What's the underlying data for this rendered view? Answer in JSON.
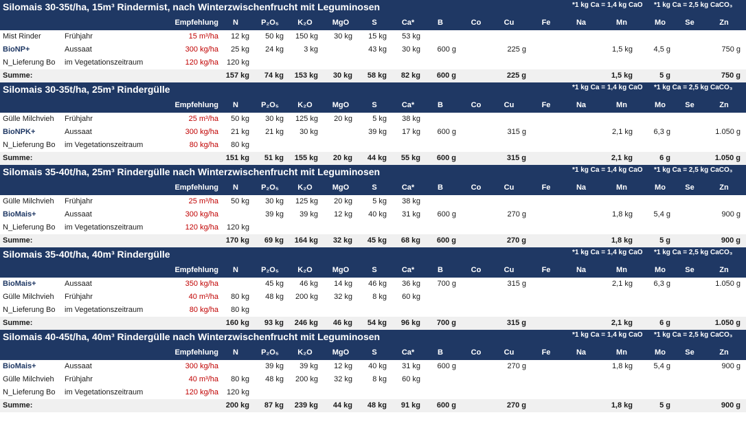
{
  "notes": {
    "cao": "*1 kg Ca = 1,4 kg CaO",
    "caco3": "*1 kg Ca = 2,5 kg CaCO₃"
  },
  "headers": [
    "Empfehlung",
    "N",
    "P₂O₅",
    "K₂O",
    "MgO",
    "S",
    "Ca*",
    "B",
    "Co",
    "Cu",
    "Fe",
    "Na",
    "Mn",
    "Mo",
    "Se",
    "Zn"
  ],
  "sections": [
    {
      "title": "Silomais 30-35t/ha, 15m³ Rindermist, nach Winterzwischenfrucht mit Leguminosen",
      "rows": [
        {
          "name": "Mist Rinder",
          "bold": false,
          "timing": "Frühjahr",
          "amount": "15 m³/ha",
          "N": "12 kg",
          "P": "50 kg",
          "K": "150 kg",
          "Mg": "30 kg",
          "S": "15 kg",
          "Ca": "53 kg",
          "B": "",
          "Cu": "",
          "Mn": "",
          "Mo": "",
          "Zn": ""
        },
        {
          "name": "BioNP+",
          "bold": true,
          "timing": "Aussaat",
          "amount": "300 kg/ha",
          "N": "25 kg",
          "P": "24 kg",
          "K": "3 kg",
          "Mg": "",
          "S": "43 kg",
          "Ca": "30 kg",
          "B": "600 g",
          "Cu": "225 g",
          "Mn": "1,5 kg",
          "Mo": "4,5 g",
          "Zn": "750 g"
        },
        {
          "name": "N_Lieferung Bo",
          "bold": false,
          "timing": "im Vegetationszeitraum",
          "amount": "120 kg/ha",
          "N": "120 kg",
          "P": "",
          "K": "",
          "Mg": "",
          "S": "",
          "Ca": "",
          "B": "",
          "Cu": "",
          "Mn": "",
          "Mo": "",
          "Zn": ""
        }
      ],
      "sum": {
        "label": "Summe:",
        "N": "157 kg",
        "P": "74 kg",
        "K": "153 kg",
        "Mg": "30 kg",
        "S": "58 kg",
        "Ca": "82 kg",
        "B": "600 g",
        "Cu": "225 g",
        "Mn": "1,5 kg",
        "Mo": "5 g",
        "Zn": "750 g"
      }
    },
    {
      "title": "Silomais 30-35t/ha, 25m³ Rindergülle",
      "rows": [
        {
          "name": "Gülle Milchvieh",
          "bold": false,
          "timing": "Frühjahr",
          "amount": "25 m³/ha",
          "N": "50 kg",
          "P": "30 kg",
          "K": "125 kg",
          "Mg": "20 kg",
          "S": "5 kg",
          "Ca": "38 kg",
          "B": "",
          "Cu": "",
          "Mn": "",
          "Mo": "",
          "Zn": ""
        },
        {
          "name": "BioNPK+",
          "bold": true,
          "timing": "Aussaat",
          "amount": "300 kg/ha",
          "N": "21 kg",
          "P": "21 kg",
          "K": "30 kg",
          "Mg": "",
          "S": "39 kg",
          "Ca": "17 kg",
          "B": "600 g",
          "Cu": "315 g",
          "Mn": "2,1 kg",
          "Mo": "6,3 g",
          "Zn": "1.050 g"
        },
        {
          "name": "N_Lieferung Bo",
          "bold": false,
          "timing": "im Vegetationszeitraum",
          "amount": "80 kg/ha",
          "N": "80 kg",
          "P": "",
          "K": "",
          "Mg": "",
          "S": "",
          "Ca": "",
          "B": "",
          "Cu": "",
          "Mn": "",
          "Mo": "",
          "Zn": ""
        }
      ],
      "sum": {
        "label": "Summe:",
        "N": "151 kg",
        "P": "51 kg",
        "K": "155 kg",
        "Mg": "20 kg",
        "S": "44 kg",
        "Ca": "55 kg",
        "B": "600 g",
        "Cu": "315 g",
        "Mn": "2,1 kg",
        "Mo": "6 g",
        "Zn": "1.050 g"
      }
    },
    {
      "title": "Silomais 35-40t/ha, 25m³ Rindergülle nach Winterzwischenfrucht mit Leguminosen",
      "rows": [
        {
          "name": "Gülle Milchvieh",
          "bold": false,
          "timing": "Frühjahr",
          "amount": "25 m³/ha",
          "N": "50 kg",
          "P": "30 kg",
          "K": "125 kg",
          "Mg": "20 kg",
          "S": "5 kg",
          "Ca": "38 kg",
          "B": "",
          "Cu": "",
          "Mn": "",
          "Mo": "",
          "Zn": ""
        },
        {
          "name": "BioMais+",
          "bold": true,
          "timing": "Aussaat",
          "amount": "300 kg/ha",
          "N": "",
          "P": "39 kg",
          "K": "39 kg",
          "Mg": "12 kg",
          "S": "40 kg",
          "Ca": "31 kg",
          "B": "600 g",
          "Cu": "270 g",
          "Mn": "1,8 kg",
          "Mo": "5,4 g",
          "Zn": "900 g"
        },
        {
          "name": "N_Lieferung Bo",
          "bold": false,
          "timing": "im Vegetationszeitraum",
          "amount": "120 kg/ha",
          "N": "120 kg",
          "P": "",
          "K": "",
          "Mg": "",
          "S": "",
          "Ca": "",
          "B": "",
          "Cu": "",
          "Mn": "",
          "Mo": "",
          "Zn": ""
        }
      ],
      "sum": {
        "label": "Summe:",
        "N": "170 kg",
        "P": "69 kg",
        "K": "164 kg",
        "Mg": "32 kg",
        "S": "45 kg",
        "Ca": "68 kg",
        "B": "600 g",
        "Cu": "270 g",
        "Mn": "1,8 kg",
        "Mo": "5 g",
        "Zn": "900 g"
      }
    },
    {
      "title": "Silomais 35-40t/ha, 40m³ Rindergülle",
      "rows": [
        {
          "name": "BioMais+",
          "bold": true,
          "timing": "Aussaat",
          "amount": "350 kg/ha",
          "N": "",
          "P": "45 kg",
          "K": "46 kg",
          "Mg": "14 kg",
          "S": "46 kg",
          "Ca": "36 kg",
          "B": "700 g",
          "Cu": "315 g",
          "Mn": "2,1 kg",
          "Mo": "6,3 g",
          "Zn": "1.050 g"
        },
        {
          "name": "Gülle Milchvieh",
          "bold": false,
          "timing": "Frühjahr",
          "amount": "40 m³/ha",
          "N": "80 kg",
          "P": "48 kg",
          "K": "200 kg",
          "Mg": "32 kg",
          "S": "8 kg",
          "Ca": "60 kg",
          "B": "",
          "Cu": "",
          "Mn": "",
          "Mo": "",
          "Zn": ""
        },
        {
          "name": "N_Lieferung Bo",
          "bold": false,
          "timing": "im Vegetationszeitraum",
          "amount": "80 kg/ha",
          "N": "80 kg",
          "P": "",
          "K": "",
          "Mg": "",
          "S": "",
          "Ca": "",
          "B": "",
          "Cu": "",
          "Mn": "",
          "Mo": "",
          "Zn": ""
        }
      ],
      "sum": {
        "label": "Summe:",
        "N": "160 kg",
        "P": "93 kg",
        "K": "246 kg",
        "Mg": "46 kg",
        "S": "54 kg",
        "Ca": "96 kg",
        "B": "700 g",
        "Cu": "315 g",
        "Mn": "2,1 kg",
        "Mo": "6 g",
        "Zn": "1.050 g"
      }
    },
    {
      "title": "Silomais 40-45t/ha, 40m³ Rindergülle nach Winterzwischenfrucht mit Leguminosen",
      "rows": [
        {
          "name": "BioMais+",
          "bold": true,
          "timing": "Aussaat",
          "amount": "300 kg/ha",
          "N": "",
          "P": "39 kg",
          "K": "39 kg",
          "Mg": "12 kg",
          "S": "40 kg",
          "Ca": "31 kg",
          "B": "600 g",
          "Cu": "270 g",
          "Mn": "1,8 kg",
          "Mo": "5,4 g",
          "Zn": "900 g"
        },
        {
          "name": "Gülle Milchvieh",
          "bold": false,
          "timing": "Frühjahr",
          "amount": "40 m³/ha",
          "N": "80 kg",
          "P": "48 kg",
          "K": "200 kg",
          "Mg": "32 kg",
          "S": "8 kg",
          "Ca": "60 kg",
          "B": "",
          "Cu": "",
          "Mn": "",
          "Mo": "",
          "Zn": ""
        },
        {
          "name": "N_Lieferung Bo",
          "bold": false,
          "timing": "im Vegetationszeitraum",
          "amount": "120 kg/ha",
          "N": "120 kg",
          "P": "",
          "K": "",
          "Mg": "",
          "S": "",
          "Ca": "",
          "B": "",
          "Cu": "",
          "Mn": "",
          "Mo": "",
          "Zn": ""
        }
      ],
      "sum": {
        "label": "Summe:",
        "N": "200 kg",
        "P": "87 kg",
        "K": "239 kg",
        "Mg": "44 kg",
        "S": "48 kg",
        "Ca": "91 kg",
        "B": "600 g",
        "Cu": "270 g",
        "Mn": "1,8 kg",
        "Mo": "5 g",
        "Zn": "900 g"
      }
    }
  ]
}
